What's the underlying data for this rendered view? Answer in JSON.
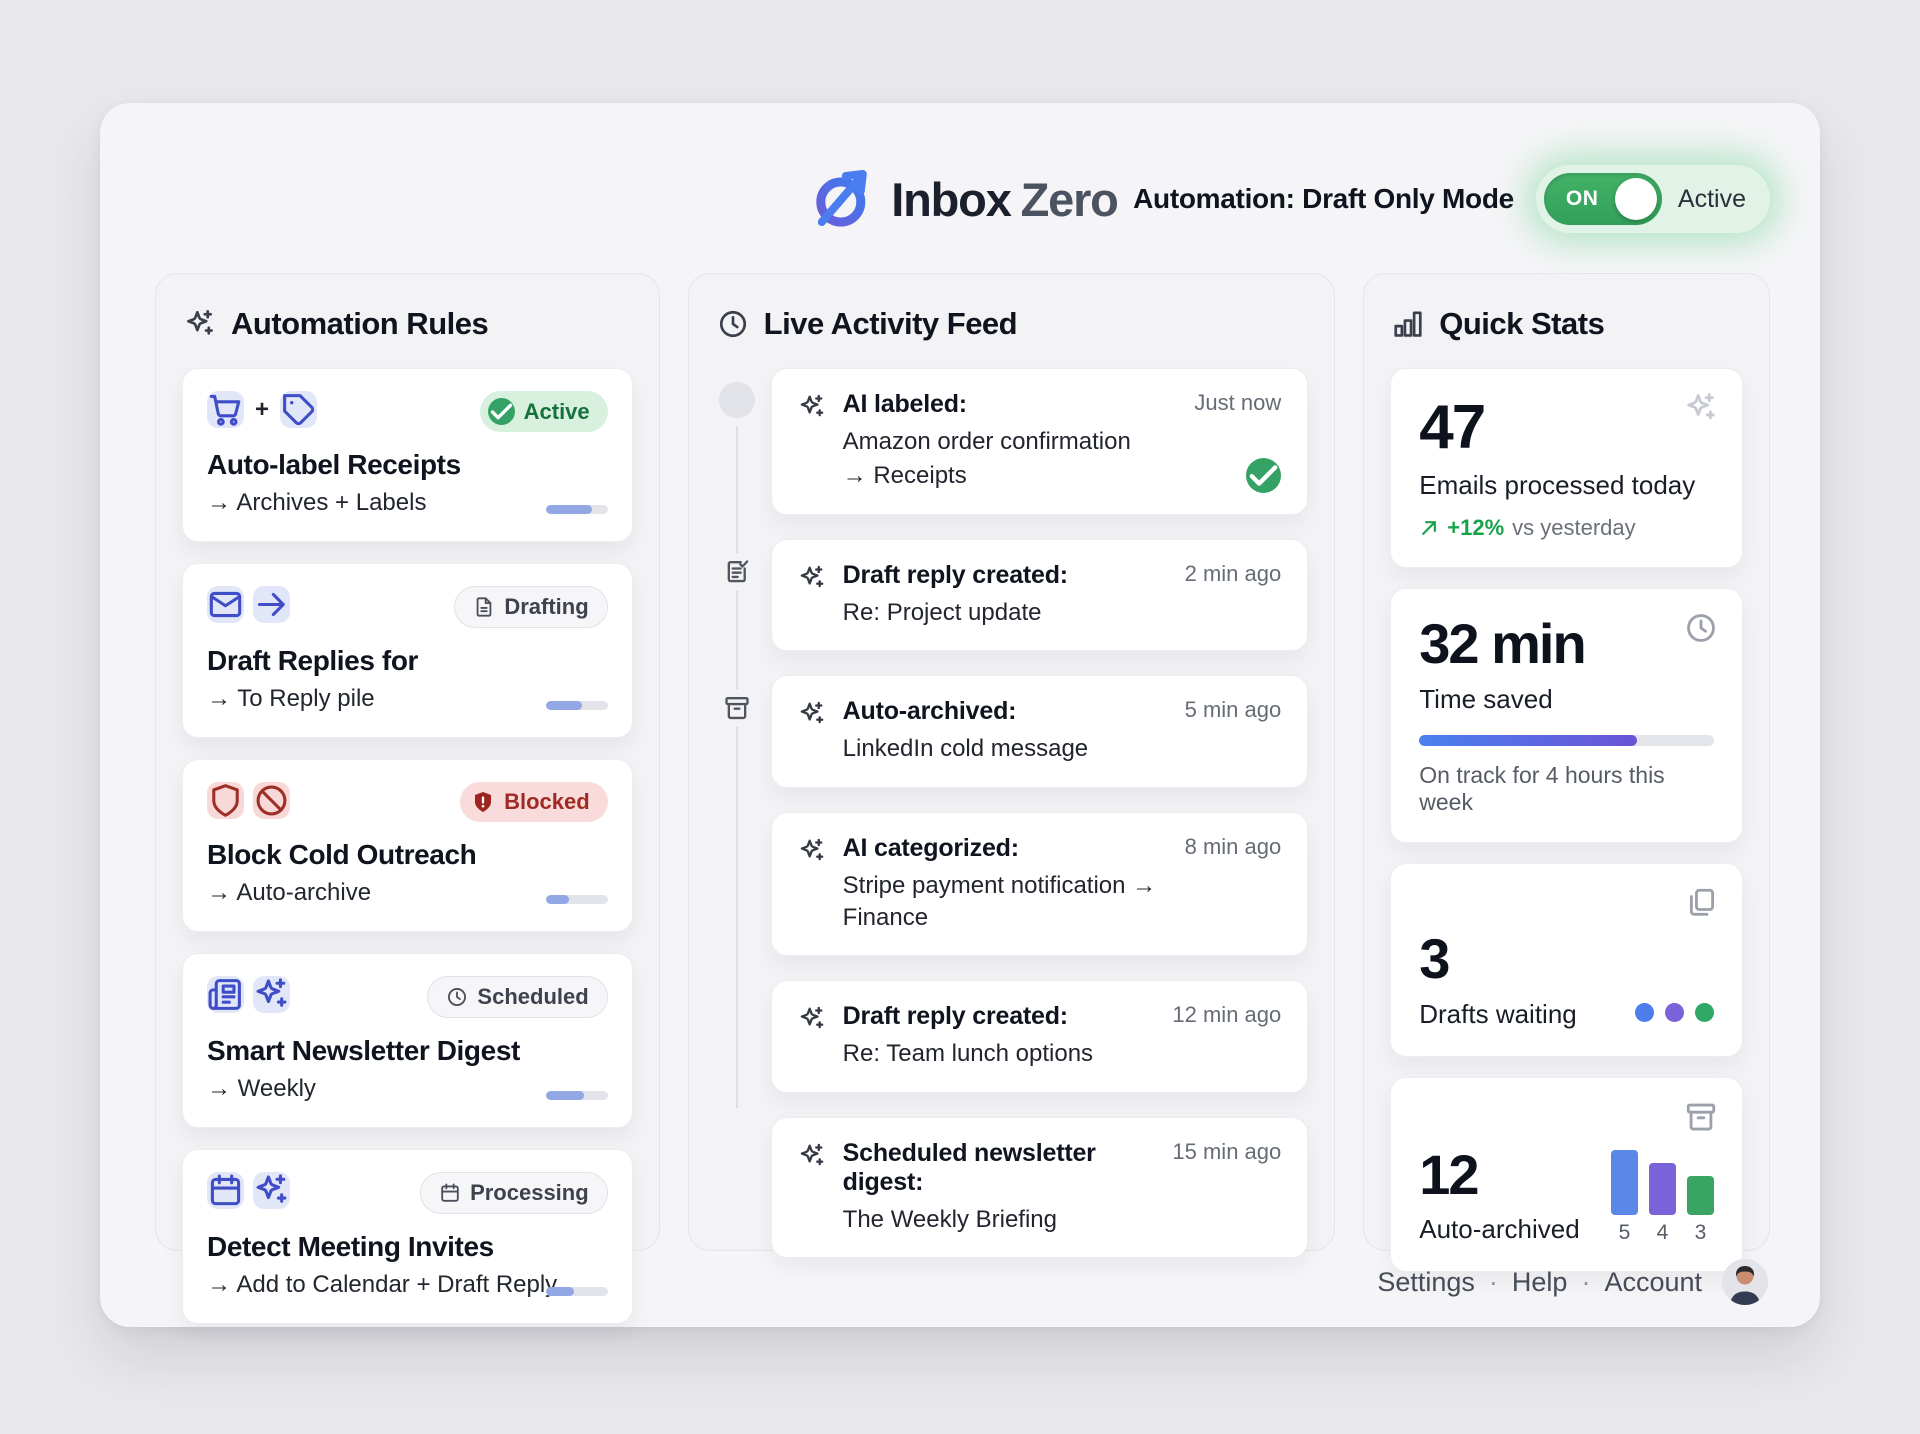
{
  "header": {
    "logo_icon": "inbox-zero-mark",
    "logo_primary": "Inbox",
    "logo_secondary": "Zero",
    "automation_label": "Automation: Draft Only Mode",
    "toggle_on_label": "ON",
    "toggle_status": "Active"
  },
  "automation_rules": {
    "icon": "sparkles",
    "title": "Automation Rules",
    "rules": [
      {
        "icons": [
          "cart",
          "tag"
        ],
        "icon_join": "+",
        "icon_theme": "indigo",
        "title": "Auto-label Receipts",
        "action": "→ Archives + Labels",
        "badge": {
          "label": "Active",
          "icon": "check",
          "theme": "green"
        },
        "progress": 75
      },
      {
        "icons": [
          "mail",
          "arrow-right"
        ],
        "icon_theme": "indigo",
        "title": "Draft Replies for",
        "action": "→ To Reply pile",
        "badge": {
          "label": "Drafting",
          "icon": "file-text",
          "theme": "gray"
        },
        "progress": 58
      },
      {
        "icons": [
          "shield",
          "ban"
        ],
        "icon_theme": "red",
        "title": "Block Cold Outreach",
        "action": "→ Auto-archive",
        "badge": {
          "label": "Blocked",
          "icon": "shield-alert",
          "theme": "red"
        },
        "progress": 38
      },
      {
        "icons": [
          "newspaper",
          "sparkles"
        ],
        "icon_theme": "indigo",
        "title": "Smart Newsletter Digest",
        "action": "→ Weekly",
        "badge": {
          "label": "Scheduled",
          "icon": "clock",
          "theme": "gray"
        },
        "progress": 62
      },
      {
        "icons": [
          "calendar",
          "sparkles"
        ],
        "icon_theme": "indigo",
        "title": "Detect Meeting Invites",
        "action": "→ Add to Calendar + Draft Reply",
        "badge": {
          "label": "Processing",
          "icon": "calendar",
          "theme": "gray"
        },
        "progress": 46
      }
    ]
  },
  "activity_feed": {
    "icon": "clock",
    "title": "Live Activity Feed",
    "items": [
      {
        "marker": "dot",
        "icon": "sparkles",
        "title": "AI labeled:",
        "lines": [
          "Amazon order confirmation",
          "→ Receipts"
        ],
        "time": "Just now",
        "status_icon": "check"
      },
      {
        "marker": "file-check",
        "icon": "sparkles",
        "title": "Draft reply created:",
        "lines": [
          "Re: Project update"
        ],
        "time": "2 min ago"
      },
      {
        "marker": "archive",
        "icon": "sparkles",
        "title": "Auto-archived:",
        "lines": [
          "LinkedIn cold message"
        ],
        "time": "5 min ago"
      },
      {
        "marker": "",
        "icon": "sparkles",
        "title": "AI categorized:",
        "lines": [
          "Stripe payment notification → Finance"
        ],
        "time": "8 min ago"
      },
      {
        "marker": "",
        "icon": "sparkles",
        "title": "Draft reply created:",
        "lines": [
          "Re: Team lunch options"
        ],
        "time": "12 min ago"
      },
      {
        "marker": "",
        "icon": "sparkles",
        "title": "Scheduled newsletter digest:",
        "lines": [
          "The Weekly Briefing"
        ],
        "time": "15 min ago"
      }
    ]
  },
  "quick_stats": {
    "icon": "bar-chart",
    "title": "Quick Stats",
    "cards": [
      {
        "value": "47",
        "label": "Emails processed today",
        "trend_icon": "trend-up",
        "trend_value": "+12%",
        "trend_suffix": "vs yesterday",
        "corner_icon": "sparkles"
      },
      {
        "value": "32 min",
        "label": "Time saved",
        "progress": 74,
        "caption": "On track for 4 hours this week",
        "corner_icon": "clock"
      },
      {
        "value": "3",
        "label": "Drafts waiting",
        "dot_colors": [
          "#4d7ceb",
          "#7b62d9",
          "#2fa866"
        ],
        "corner_icon": "copy"
      },
      {
        "value": "12",
        "label": "Auto-archived",
        "corner_icon": "archive",
        "chart": {
          "type": "bar",
          "values": [
            5,
            4,
            3
          ],
          "colors": [
            "#5b87e8",
            "#7a63d8",
            "#3aa562"
          ]
        }
      }
    ]
  },
  "footer": {
    "links": [
      "Settings",
      "Help",
      "Account"
    ],
    "separator": "·"
  }
}
